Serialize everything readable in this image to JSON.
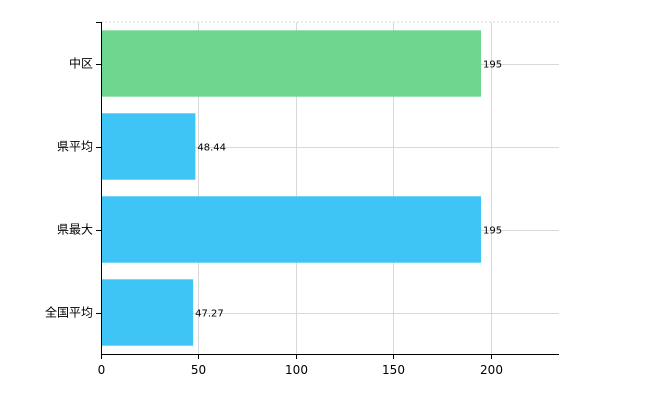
{
  "chart_data": {
    "type": "bar",
    "orientation": "horizontal",
    "categories": [
      "中区",
      "県平均",
      "県最大",
      "全国平均"
    ],
    "values": [
      195,
      48.44,
      195,
      47.27
    ],
    "value_labels": [
      "195",
      "48.44",
      "195",
      "47.27"
    ],
    "bar_colors": [
      "#6fd68f",
      "#3ec4f5",
      "#3ec4f5",
      "#3ec4f5"
    ],
    "xlim": [
      0,
      235
    ],
    "xticks": [
      0,
      50,
      100,
      150,
      200
    ],
    "xtick_labels": [
      "0",
      "50",
      "100",
      "150",
      "200"
    ],
    "grid": true,
    "legend": "none"
  },
  "colors": {
    "highlight": "#6fd68f",
    "default": "#3ec4f5",
    "grid": "#d9d9d9",
    "axis": "#000000"
  }
}
